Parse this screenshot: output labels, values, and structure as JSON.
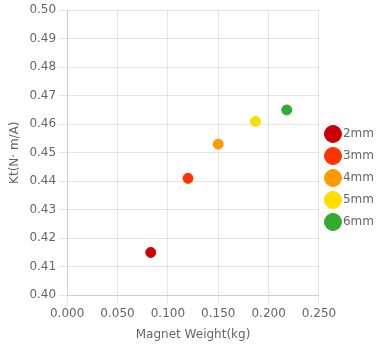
{
  "chart_data": {
    "type": "scatter",
    "xlabel": "Magnet Weight(kg)",
    "ylabel": "Kt(N· m/A)",
    "marker": "circle",
    "series": [
      {
        "name": "2mm",
        "color": "#cc0000",
        "x": [
          0.083
        ],
        "values": [
          0.415
        ]
      },
      {
        "name": "3mm",
        "color": "#ff3300",
        "x": [
          0.12
        ],
        "values": [
          0.441
        ]
      },
      {
        "name": "4mm",
        "color": "#ff9900",
        "x": [
          0.15
        ],
        "values": [
          0.453
        ]
      },
      {
        "name": "5mm",
        "color": "#ffdd00",
        "x": [
          0.187
        ],
        "values": [
          0.461
        ]
      },
      {
        "name": "6mm",
        "color": "#33aa33",
        "x": [
          0.218
        ],
        "values": [
          0.465
        ]
      }
    ],
    "xlim": [
      0.0,
      0.25
    ],
    "xticks": [
      {
        "value": 0,
        "label": "0.000"
      },
      {
        "value": 0.05,
        "label": "0.050"
      },
      {
        "value": 0.1,
        "label": "0.100"
      },
      {
        "value": 0.15,
        "label": "0.150"
      },
      {
        "value": 0.2,
        "label": "0.200"
      },
      {
        "value": 0.25,
        "label": "0.250"
      }
    ],
    "ylim": [
      0.4,
      0.5
    ],
    "yticks": [
      {
        "value": 0.4,
        "label": "0.40"
      },
      0.41,
      0.42,
      0.43,
      0.44,
      0.45,
      0.46,
      0.47,
      0.48,
      0.49,
      {
        "value": 0.5,
        "label": "0.50"
      }
    ],
    "grid": true,
    "legend": "right"
  }
}
